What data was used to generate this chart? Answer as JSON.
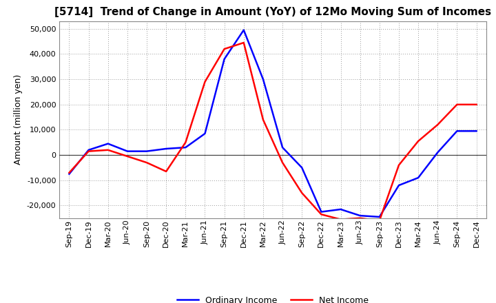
{
  "title": "[5714]  Trend of Change in Amount (YoY) of 12Mo Moving Sum of Incomes",
  "ylabel": "Amount (million yen)",
  "x_labels": [
    "Sep-19",
    "Dec-19",
    "Mar-20",
    "Jun-20",
    "Sep-20",
    "Dec-20",
    "Mar-21",
    "Jun-21",
    "Sep-21",
    "Dec-21",
    "Mar-22",
    "Jun-22",
    "Sep-22",
    "Dec-22",
    "Mar-23",
    "Jun-23",
    "Sep-23",
    "Dec-23",
    "Mar-24",
    "Jun-24",
    "Sep-24",
    "Dec-24"
  ],
  "ordinary_income": [
    -7500,
    2000,
    4500,
    1500,
    1500,
    2500,
    3000,
    8500,
    38000,
    49500,
    30000,
    3000,
    -5000,
    -22500,
    -21500,
    -24000,
    -24500,
    -12000,
    -9000,
    1000,
    9500,
    9500
  ],
  "net_income": [
    -7000,
    1500,
    2000,
    -500,
    -3000,
    -6500,
    5000,
    29000,
    42000,
    44500,
    14000,
    -3000,
    -15000,
    -23500,
    -25500,
    -25000,
    -26000,
    -4000,
    5500,
    12000,
    20000,
    20000
  ],
  "ordinary_color": "#0000ff",
  "net_color": "#ff0000",
  "ylim": [
    -25000,
    53000
  ],
  "yticks": [
    -20000,
    -10000,
    0,
    10000,
    20000,
    30000,
    40000,
    50000
  ],
  "background_color": "#ffffff",
  "grid_color": "#999999",
  "legend_ordinary": "Ordinary Income",
  "legend_net": "Net Income",
  "line_width": 1.8,
  "title_fontsize": 11,
  "tick_fontsize": 8,
  "ylabel_fontsize": 9
}
